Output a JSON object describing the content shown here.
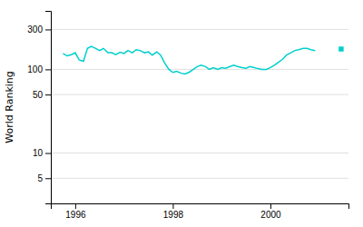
{
  "chart_data": {
    "type": "line",
    "ylabel": "World Ranking",
    "log": "y",
    "grid": true,
    "xlim": [
      1995.5,
      2001.6
    ],
    "xticks": [
      1996,
      1998,
      2000
    ],
    "ylim": [
      2.5,
      500
    ],
    "yticks": [
      5,
      10,
      50,
      100,
      300
    ],
    "series": [
      {
        "type": "line",
        "color": "#00d0cc",
        "x": [
          1995.75,
          1995.83,
          1995.92,
          1996.0,
          1996.08,
          1996.17,
          1996.25,
          1996.33,
          1996.42,
          1996.5,
          1996.58,
          1996.67,
          1996.75,
          1996.83,
          1996.92,
          1997.0,
          1997.08,
          1997.17,
          1997.25,
          1997.33,
          1997.42,
          1997.5,
          1997.58,
          1997.67,
          1997.75,
          1997.83,
          1997.92,
          1998.0,
          1998.08,
          1998.17,
          1998.25,
          1998.33,
          1998.42,
          1998.5,
          1998.58,
          1998.67,
          1998.75,
          1998.83,
          1998.92,
          1999.0,
          1999.08,
          1999.17,
          1999.25,
          1999.33,
          1999.42,
          1999.5,
          1999.58,
          1999.67,
          1999.75,
          1999.83,
          1999.92,
          2000.0,
          2000.08,
          2000.17,
          2000.25,
          2000.33,
          2000.42,
          2000.5,
          2000.58,
          2000.67,
          2000.75,
          2000.83,
          2000.92
        ],
        "values": [
          155,
          145,
          150,
          158,
          130,
          125,
          178,
          188,
          178,
          168,
          178,
          158,
          158,
          150,
          160,
          155,
          168,
          158,
          172,
          168,
          158,
          162,
          148,
          162,
          148,
          120,
          100,
          92,
          95,
          90,
          88,
          92,
          100,
          108,
          112,
          108,
          100,
          105,
          100,
          105,
          103,
          108,
          112,
          108,
          105,
          103,
          108,
          105,
          102,
          100,
          100,
          105,
          112,
          122,
          132,
          148,
          158,
          168,
          172,
          178,
          178,
          172,
          168
        ]
      },
      {
        "type": "scatter",
        "marker": "square",
        "color": "#00d0cc",
        "x": [
          2001.45
        ],
        "values": [
          175
        ]
      }
    ]
  }
}
